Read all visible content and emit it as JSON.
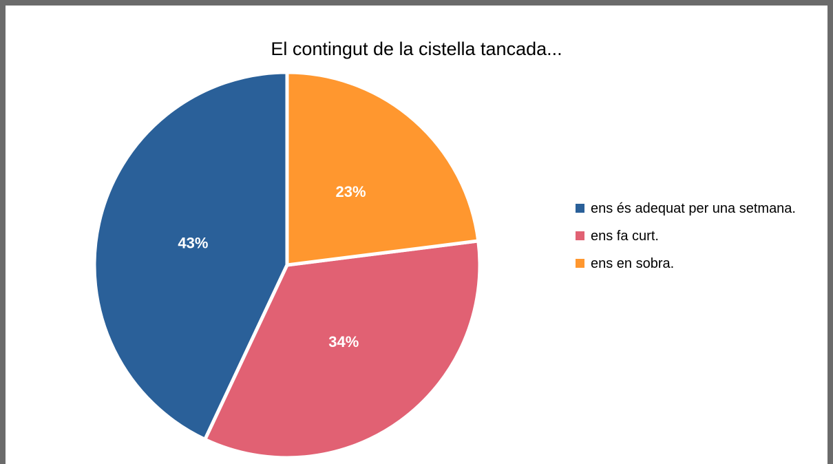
{
  "chart_data": {
    "type": "pie",
    "title": "El contingut de la cistella tancada...",
    "categories": [
      "ens és adequat per una setmana.",
      "ens fa curt.",
      "ens en sobra."
    ],
    "values": [
      43,
      34,
      23
    ],
    "value_labels": [
      "43%",
      "34%",
      "23%"
    ],
    "colors": [
      "#2a6099",
      "#e16173",
      "#ff972f"
    ],
    "legend": "right"
  }
}
